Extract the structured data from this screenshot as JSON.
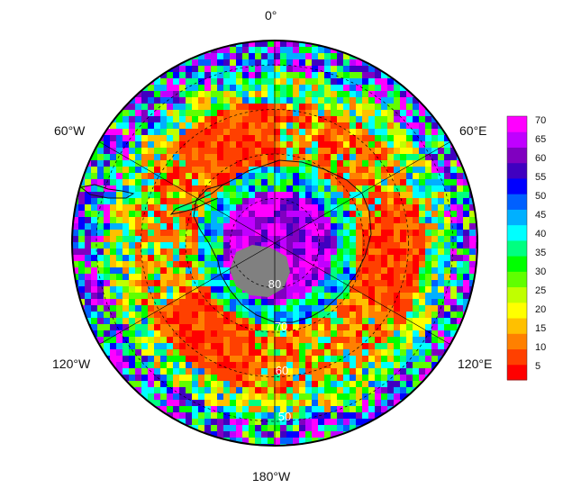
{
  "map": {
    "projection": "south-polar-stereographic",
    "longitude_labels": {
      "top": "0°",
      "left": "60°W",
      "right": "60°E",
      "lower_left": "120°W",
      "lower_right": "120°E",
      "bottom": "180°W"
    },
    "latitude_labels": [
      "80",
      "70",
      "60",
      "50"
    ],
    "land_mask_color": "#808080",
    "palette": [
      "#ff0000",
      "#ff4000",
      "#ff8000",
      "#ffc000",
      "#ffff00",
      "#c0ff00",
      "#60ff00",
      "#00ff00",
      "#00ff80",
      "#00ffff",
      "#00b0ff",
      "#0060ff",
      "#0000ff",
      "#4000c0",
      "#8000c0",
      "#c000ff",
      "#ff00ff"
    ]
  },
  "colorbar": {
    "ticks": [
      "70",
      "65",
      "60",
      "55",
      "50",
      "45",
      "40",
      "35",
      "30",
      "25",
      "20",
      "15",
      "10",
      "5"
    ],
    "min": 0,
    "max": 72
  }
}
